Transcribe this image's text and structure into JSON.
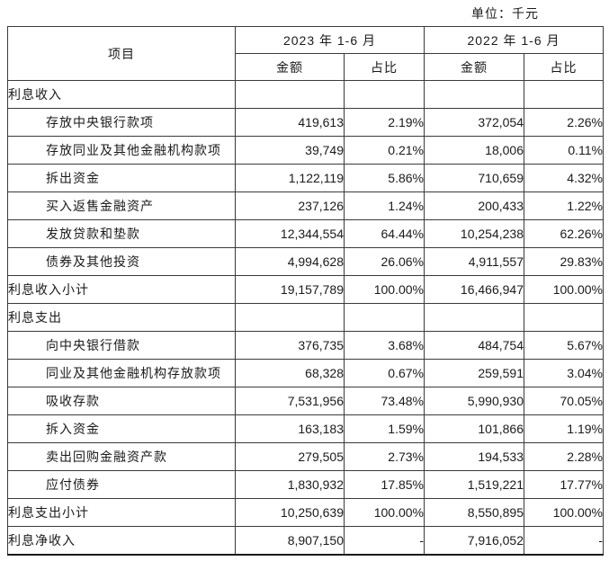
{
  "unit_label": "单位：千元",
  "table": {
    "headers": {
      "item": "项目",
      "period_2023": "2023 年 1-6 月",
      "period_2022": "2022 年 1-6 月",
      "amount": "金额",
      "ratio": "占比"
    },
    "rows": [
      {
        "label": "利息收入",
        "indent": 0,
        "a2023": "",
        "r2023": "",
        "a2022": "",
        "r2022": ""
      },
      {
        "label": "存放中央银行款项",
        "indent": 1,
        "a2023": "419,613",
        "r2023": "2.19%",
        "a2022": "372,054",
        "r2022": "2.26%"
      },
      {
        "label": "存放同业及其他金融机构款项",
        "indent": 1,
        "a2023": "39,749",
        "r2023": "0.21%",
        "a2022": "18,006",
        "r2022": "0.11%"
      },
      {
        "label": "拆出资金",
        "indent": 1,
        "a2023": "1,122,119",
        "r2023": "5.86%",
        "a2022": "710,659",
        "r2022": "4.32%"
      },
      {
        "label": "买入返售金融资产",
        "indent": 1,
        "a2023": "237,126",
        "r2023": "1.24%",
        "a2022": "200,433",
        "r2022": "1.22%"
      },
      {
        "label": "发放贷款和垫款",
        "indent": 1,
        "a2023": "12,344,554",
        "r2023": "64.44%",
        "a2022": "10,254,238",
        "r2022": "62.26%"
      },
      {
        "label": "债券及其他投资",
        "indent": 1,
        "a2023": "4,994,628",
        "r2023": "26.06%",
        "a2022": "4,911,557",
        "r2022": "29.83%"
      },
      {
        "label": "利息收入小计",
        "indent": 0,
        "a2023": "19,157,789",
        "r2023": "100.00%",
        "a2022": "16,466,947",
        "r2022": "100.00%"
      },
      {
        "label": "利息支出",
        "indent": 0,
        "a2023": "",
        "r2023": "",
        "a2022": "",
        "r2022": ""
      },
      {
        "label": "向中央银行借款",
        "indent": 1,
        "a2023": "376,735",
        "r2023": "3.68%",
        "a2022": "484,754",
        "r2022": "5.67%"
      },
      {
        "label": "同业及其他金融机构存放款项",
        "indent": 1,
        "a2023": "68,328",
        "r2023": "0.67%",
        "a2022": "259,591",
        "r2022": "3.04%"
      },
      {
        "label": "吸收存款",
        "indent": 1,
        "a2023": "7,531,956",
        "r2023": "73.48%",
        "a2022": "5,990,930",
        "r2022": "70.05%"
      },
      {
        "label": "拆入资金",
        "indent": 1,
        "a2023": "163,183",
        "r2023": "1.59%",
        "a2022": "101,866",
        "r2022": "1.19%"
      },
      {
        "label": "卖出回购金融资产款",
        "indent": 1,
        "a2023": "279,505",
        "r2023": "2.73%",
        "a2022": "194,533",
        "r2022": "2.28%"
      },
      {
        "label": "应付债券",
        "indent": 1,
        "a2023": "1,830,932",
        "r2023": "17.85%",
        "a2022": "1,519,221",
        "r2022": "17.77%"
      },
      {
        "label": "利息支出小计",
        "indent": 0,
        "a2023": "10,250,639",
        "r2023": "100.00%",
        "a2022": "8,550,895",
        "r2022": "100.00%"
      },
      {
        "label": "利息净收入",
        "indent": 0,
        "a2023": "8,907,150",
        "r2023": "-",
        "a2022": "7,916,052",
        "r2022": "-"
      }
    ]
  }
}
